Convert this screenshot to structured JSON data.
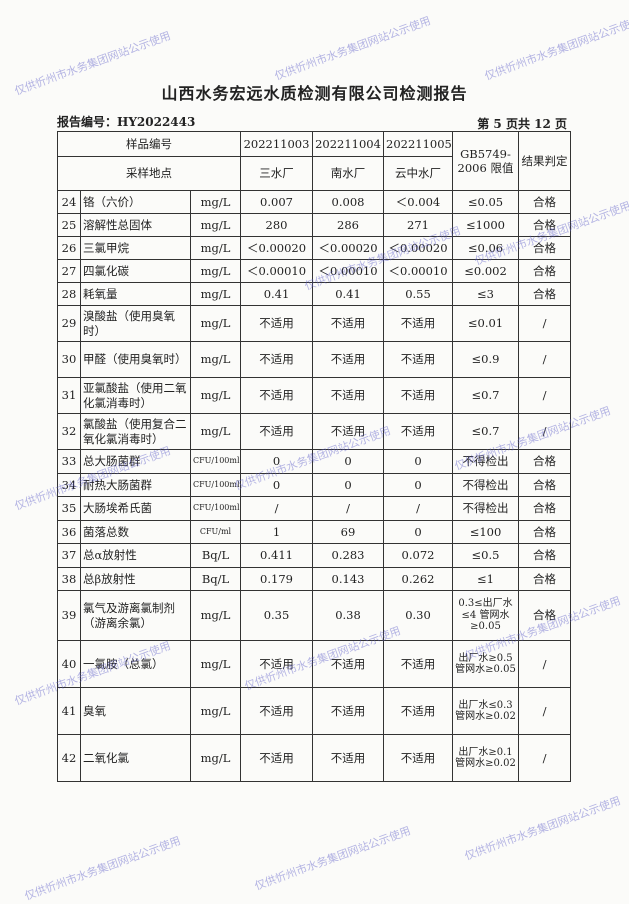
{
  "title": "山西水务宏远水质检测有限公司检测报告",
  "report_no": "报告编号：HY2022443",
  "page": "第 5 页共 12 页",
  "watermark": "仅供忻州市水务集团网站公示使用",
  "header": {
    "sample_no_label": "样品编号",
    "location_label": "采样地点",
    "samples": [
      {
        "id": "202211003",
        "site": "三水厂"
      },
      {
        "id": "202211004",
        "site": "南水厂"
      },
      {
        "id": "202211005",
        "site": "云中水厂"
      }
    ],
    "standard": "GB5749-2006 限值",
    "judgement": "结果判定"
  },
  "rows": [
    [
      "24",
      "铬（六价）",
      "mg/L",
      "0.007",
      "0.008",
      "＜0.004",
      "≤0.05",
      "合格"
    ],
    [
      "25",
      "溶解性总固体",
      "mg/L",
      "280",
      "286",
      "271",
      "≤1000",
      "合格"
    ],
    [
      "26",
      "三氯甲烷",
      "mg/L",
      "＜0.00020",
      "＜0.00020",
      "＜0.00020",
      "≤0.06",
      "合格"
    ],
    [
      "27",
      "四氯化碳",
      "mg/L",
      "＜0.00010",
      "＜0.00010",
      "＜0.00010",
      "≤0.002",
      "合格"
    ],
    [
      "28",
      "耗氧量",
      "mg/L",
      "0.41",
      "0.41",
      "0.55",
      "≤3",
      "合格"
    ],
    [
      "29",
      "溴酸盐（使用臭氧时）",
      "mg/L",
      "不适用",
      "不适用",
      "不适用",
      "≤0.01",
      "/"
    ],
    [
      "30",
      "甲醛（使用臭氧时）",
      "mg/L",
      "不适用",
      "不适用",
      "不适用",
      "≤0.9",
      "/"
    ],
    [
      "31",
      "亚氯酸盐（使用二氧化氯消毒时）",
      "mg/L",
      "不适用",
      "不适用",
      "不适用",
      "≤0.7",
      "/"
    ],
    [
      "32",
      "氯酸盐（使用复合二氧化氯消毒时）",
      "mg/L",
      "不适用",
      "不适用",
      "不适用",
      "≤0.7",
      "/"
    ],
    [
      "33",
      "总大肠菌群",
      "CFU/100ml",
      "0",
      "0",
      "0",
      "不得检出",
      "合格"
    ],
    [
      "34",
      "耐热大肠菌群",
      "CFU/100ml",
      "0",
      "0",
      "0",
      "不得检出",
      "合格"
    ],
    [
      "35",
      "大肠埃希氏菌",
      "CFU/100ml",
      "/",
      "/",
      "/",
      "不得检出",
      "合格"
    ],
    [
      "36",
      "菌落总数",
      "CFU/ml",
      "1",
      "69",
      "0",
      "≤100",
      "合格"
    ],
    [
      "37",
      "总α放射性",
      "Bq/L",
      "0.411",
      "0.283",
      "0.072",
      "≤0.5",
      "合格"
    ],
    [
      "38",
      "总β放射性",
      "Bq/L",
      "0.179",
      "0.143",
      "0.262",
      "≤1",
      "合格"
    ],
    [
      "39",
      "氯气及游离氯制剂（游离余氯）",
      "mg/L",
      "0.35",
      "0.38",
      "0.30",
      "0.3≤出厂水≤4 管网水≥0.05",
      "合格"
    ],
    [
      "40",
      "一氯胺（总氯）",
      "mg/L",
      "不适用",
      "不适用",
      "不适用",
      "出厂水≥0.5 管网水≥0.05",
      "/"
    ],
    [
      "41",
      "臭氧",
      "mg/L",
      "不适用",
      "不适用",
      "不适用",
      "出厂水≤0.3 管网水≥0.02",
      "/"
    ],
    [
      "42",
      "二氧化氯",
      "mg/L",
      "不适用",
      "不适用",
      "不适用",
      "出厂水≥0.1 管网水≥0.02",
      "/"
    ]
  ]
}
